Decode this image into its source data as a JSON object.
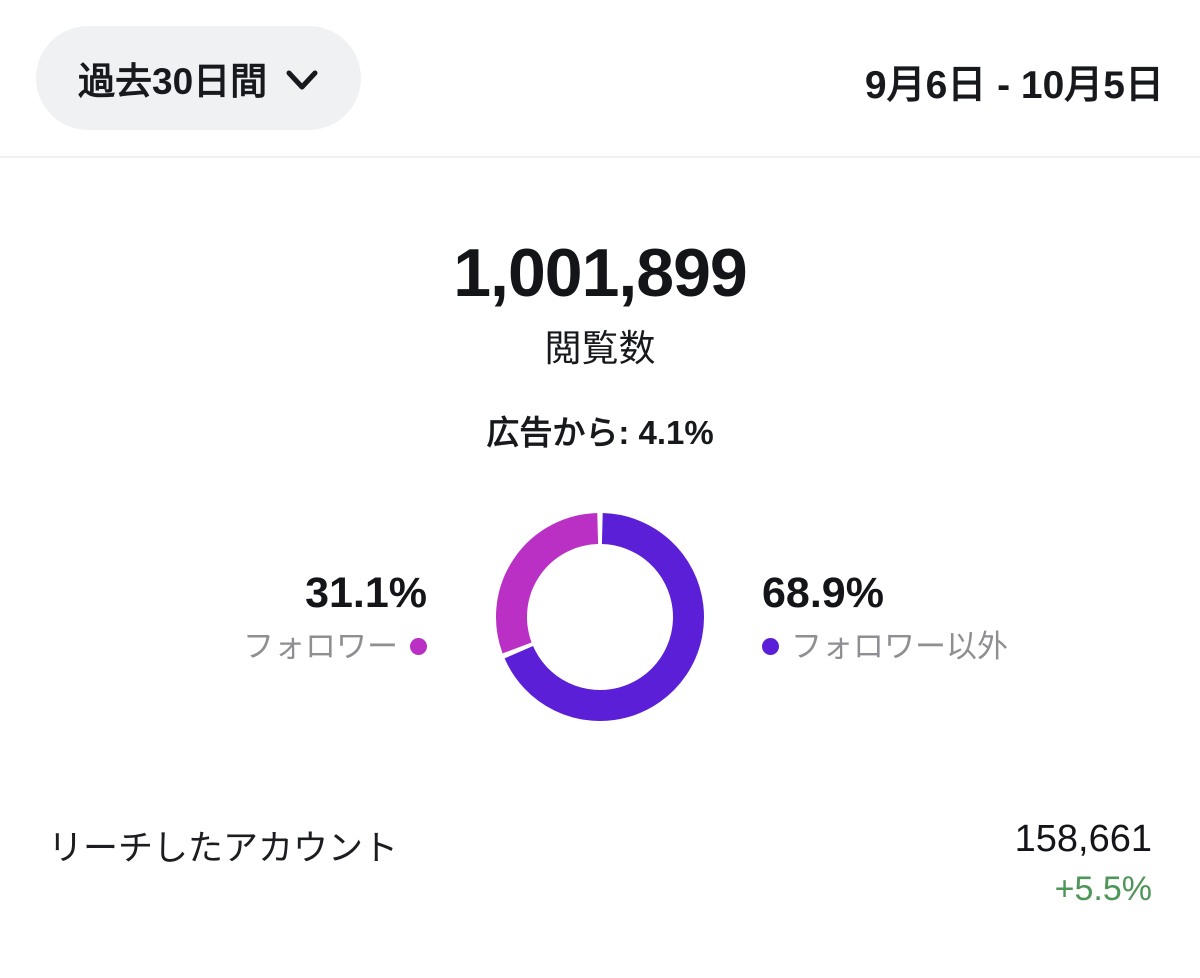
{
  "header": {
    "period_selector": {
      "label": "過去30日間",
      "chevron_icon": "chevron-down"
    },
    "date_range": "9月6日 - 10月5日"
  },
  "overview": {
    "total_value": "1,001,899",
    "total_label": "閲覧数",
    "ads_note": "広告から: 4.1%"
  },
  "chart_data": {
    "type": "pie",
    "donut": true,
    "title": "閲覧数",
    "center_metric": {
      "value": "1,001,899",
      "label": "閲覧数"
    },
    "annotation": "広告から: 4.1%",
    "gap_deg": 3,
    "start_angle_deg": 0,
    "segments": [
      {
        "key": "non-followers",
        "label": "フォロワー以外",
        "pct": 68.9,
        "color": "#5a1fd6"
      },
      {
        "key": "followers",
        "label": "フォロワー",
        "pct": 31.1,
        "color": "#ba30c4"
      }
    ],
    "legend_position": "sides"
  },
  "legend": {
    "followers": {
      "value": "31.1%",
      "label": "フォロワー",
      "dot_color": "#ba30c4"
    },
    "non_followers": {
      "value": "68.9%",
      "label": "フォロワー以外",
      "dot_color": "#5a1fd6"
    }
  },
  "metrics_row": {
    "label": "リーチしたアカウント",
    "value": "158,661",
    "change": "+5.5%",
    "change_color": "#4f9659"
  },
  "colors": {
    "followers_segment": "#ba30c4",
    "non_followers_segment": "#5a1fd6",
    "positive_change": "#4f9659",
    "pill_background": "#f0f1f3",
    "muted_text": "#8e8e93"
  }
}
